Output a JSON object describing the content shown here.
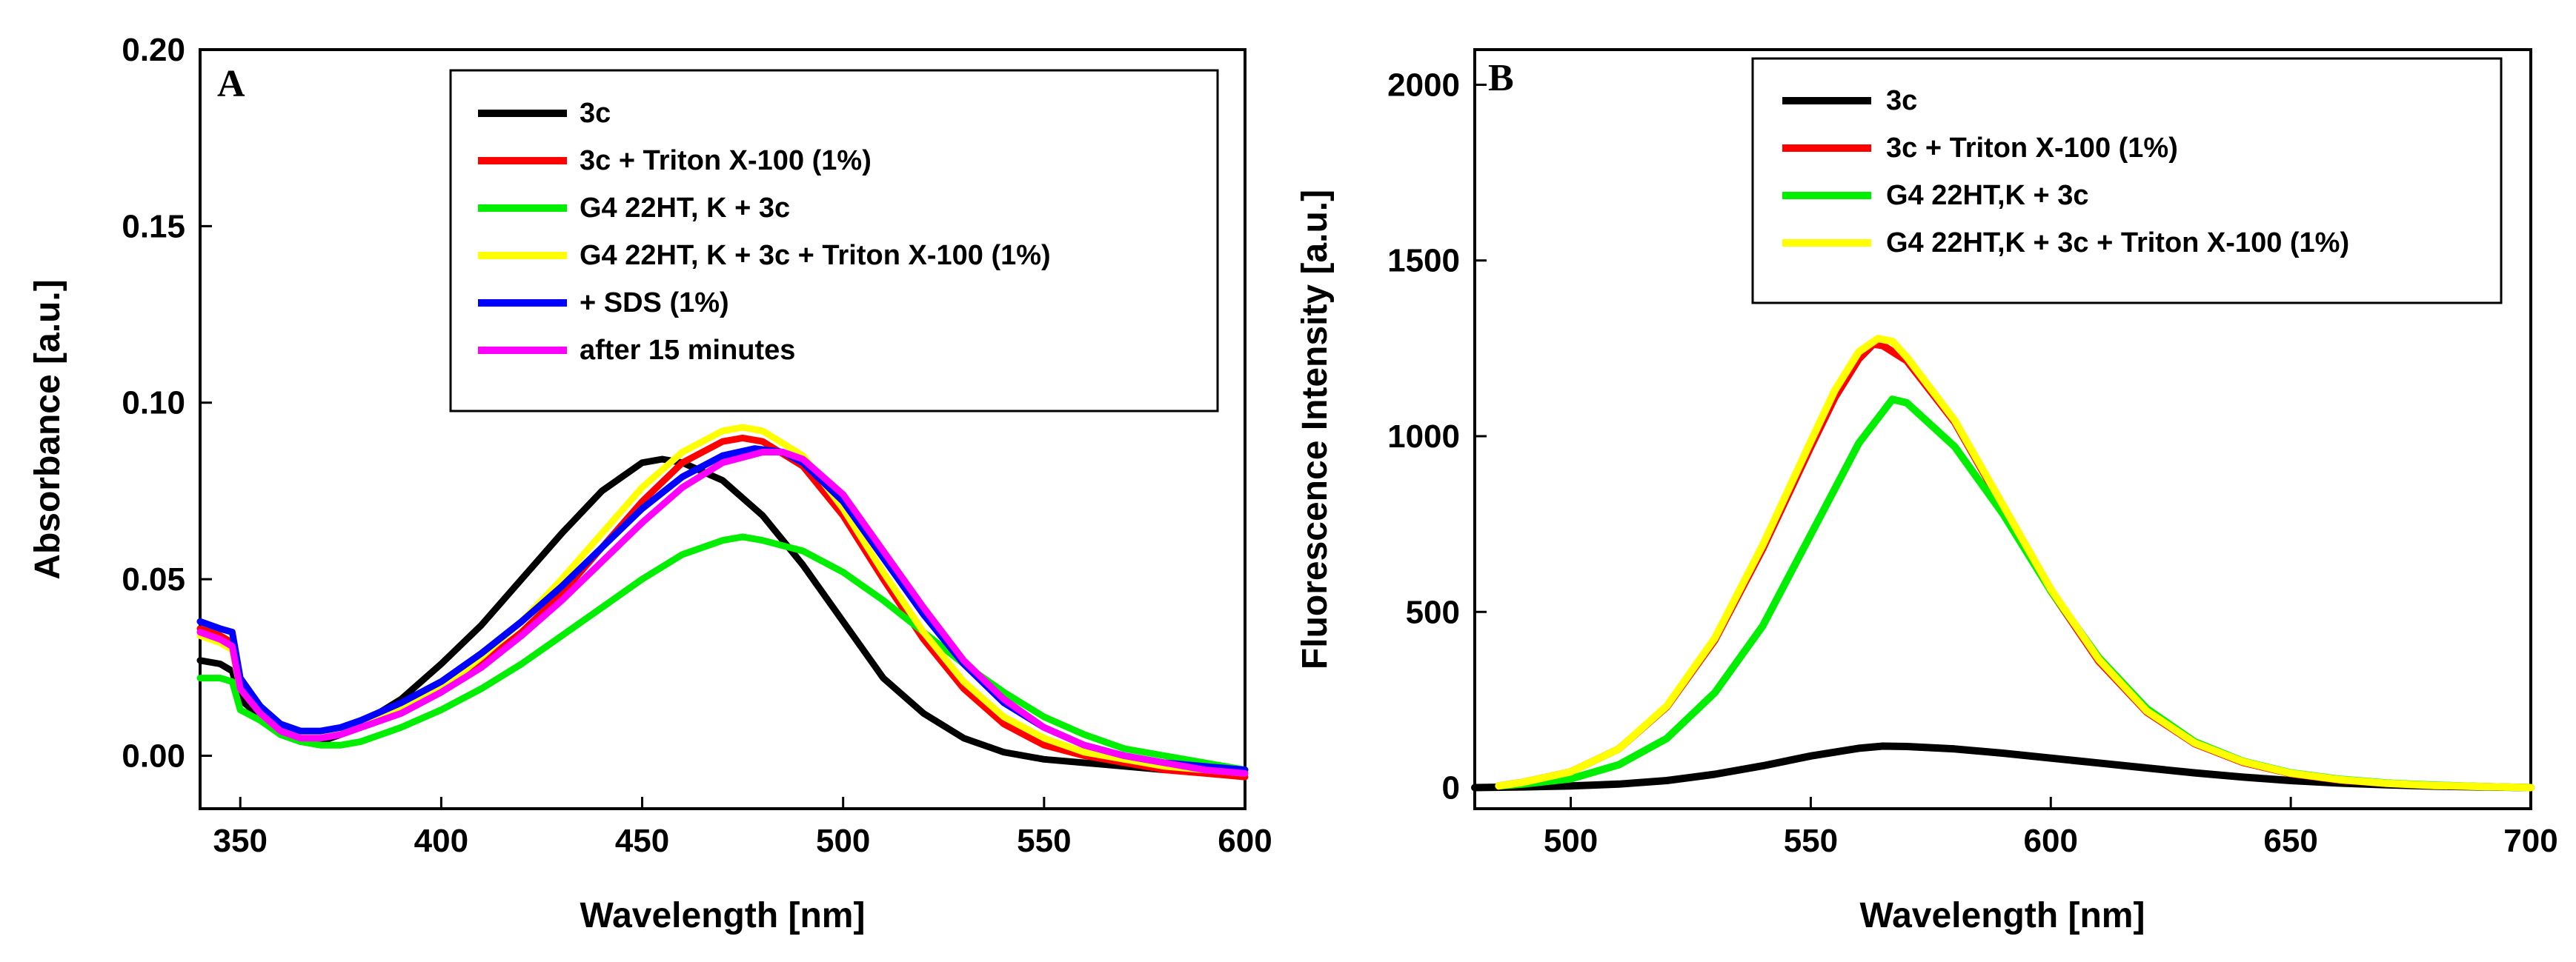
{
  "chart_data": [
    {
      "type": "line",
      "panel_label": "A",
      "xlabel": "Wavelength [nm]",
      "ylabel": "Absorbance [a.u.]",
      "xlim": [
        340,
        600
      ],
      "ylim": [
        -0.015,
        0.2
      ],
      "xticks": [
        350,
        400,
        450,
        500,
        550,
        600
      ],
      "xtick_labels": [
        "350",
        "400",
        "450",
        "500",
        "550",
        "600"
      ],
      "yticks": [
        0,
        0.05,
        0.1,
        0.15,
        0.2
      ],
      "ytick_labels": [
        "0.00",
        "0.05",
        "0.10",
        "0.15",
        "0.20"
      ],
      "legend_position": "top-right",
      "series": [
        {
          "name": "3c",
          "color": "#000000",
          "x": [
            340,
            345,
            348,
            350,
            355,
            360,
            365,
            370,
            375,
            380,
            390,
            400,
            410,
            420,
            430,
            440,
            450,
            455,
            460,
            470,
            480,
            490,
            500,
            510,
            520,
            530,
            540,
            550,
            560,
            570,
            580,
            590,
            600
          ],
          "y": [
            0.027,
            0.026,
            0.024,
            0.016,
            0.011,
            0.006,
            0.004,
            0.004,
            0.006,
            0.009,
            0.016,
            0.026,
            0.037,
            0.05,
            0.063,
            0.075,
            0.083,
            0.084,
            0.083,
            0.078,
            0.068,
            0.054,
            0.038,
            0.022,
            0.012,
            0.005,
            0.001,
            -0.001,
            -0.002,
            -0.003,
            -0.004,
            -0.004,
            -0.005
          ]
        },
        {
          "name": "3c + Triton X-100 (1%)",
          "color": "#ff0000",
          "x": [
            340,
            345,
            348,
            350,
            355,
            360,
            365,
            370,
            375,
            380,
            390,
            400,
            410,
            420,
            430,
            440,
            450,
            460,
            470,
            475,
            480,
            490,
            500,
            510,
            520,
            530,
            540,
            550,
            560,
            570,
            580,
            590,
            600
          ],
          "y": [
            0.036,
            0.034,
            0.032,
            0.02,
            0.013,
            0.008,
            0.006,
            0.006,
            0.006,
            0.008,
            0.012,
            0.018,
            0.026,
            0.035,
            0.046,
            0.059,
            0.072,
            0.083,
            0.089,
            0.09,
            0.089,
            0.082,
            0.068,
            0.05,
            0.033,
            0.019,
            0.009,
            0.003,
            0.0,
            -0.002,
            -0.004,
            -0.005,
            -0.006
          ]
        },
        {
          "name": "G4 22HT, K + 3c",
          "color": "#00ee00",
          "x": [
            340,
            345,
            348,
            350,
            355,
            360,
            365,
            370,
            375,
            380,
            390,
            400,
            410,
            420,
            430,
            440,
            450,
            460,
            470,
            475,
            480,
            490,
            500,
            510,
            520,
            530,
            540,
            550,
            560,
            570,
            580,
            590,
            600
          ],
          "y": [
            0.022,
            0.022,
            0.021,
            0.013,
            0.01,
            0.006,
            0.004,
            0.003,
            0.003,
            0.004,
            0.008,
            0.013,
            0.019,
            0.026,
            0.034,
            0.042,
            0.05,
            0.057,
            0.061,
            0.062,
            0.061,
            0.058,
            0.052,
            0.044,
            0.035,
            0.026,
            0.018,
            0.011,
            0.006,
            0.002,
            0.0,
            -0.002,
            -0.004
          ]
        },
        {
          "name": "G4 22HT, K + 3c + Triton X-100 (1%)",
          "color": "#ffff00",
          "x": [
            340,
            345,
            348,
            350,
            355,
            360,
            365,
            370,
            375,
            380,
            390,
            400,
            410,
            420,
            430,
            440,
            450,
            460,
            470,
            475,
            480,
            490,
            500,
            510,
            520,
            530,
            540,
            550,
            560,
            570,
            580,
            590,
            600
          ],
          "y": [
            0.034,
            0.032,
            0.03,
            0.019,
            0.012,
            0.007,
            0.006,
            0.006,
            0.007,
            0.009,
            0.013,
            0.019,
            0.028,
            0.038,
            0.05,
            0.063,
            0.076,
            0.086,
            0.092,
            0.093,
            0.092,
            0.085,
            0.07,
            0.052,
            0.035,
            0.021,
            0.011,
            0.005,
            0.001,
            -0.001,
            -0.003,
            -0.004,
            -0.005
          ]
        },
        {
          "name": "+ SDS (1%)",
          "color": "#0000ff",
          "x": [
            340,
            345,
            348,
            350,
            355,
            360,
            365,
            370,
            375,
            380,
            390,
            400,
            410,
            420,
            430,
            440,
            450,
            460,
            470,
            478,
            485,
            490,
            500,
            510,
            520,
            530,
            540,
            550,
            560,
            570,
            580,
            590,
            600
          ],
          "y": [
            0.038,
            0.036,
            0.035,
            0.022,
            0.014,
            0.009,
            0.007,
            0.007,
            0.008,
            0.01,
            0.015,
            0.021,
            0.029,
            0.038,
            0.048,
            0.059,
            0.07,
            0.079,
            0.085,
            0.087,
            0.086,
            0.083,
            0.072,
            0.056,
            0.04,
            0.026,
            0.015,
            0.008,
            0.003,
            0.0,
            -0.002,
            -0.003,
            -0.004
          ]
        },
        {
          "name": "after 15 minutes",
          "color": "#ff00ff",
          "x": [
            340,
            345,
            348,
            350,
            355,
            360,
            365,
            370,
            375,
            380,
            390,
            400,
            410,
            420,
            430,
            440,
            450,
            460,
            470,
            480,
            485,
            490,
            500,
            510,
            520,
            530,
            540,
            550,
            560,
            570,
            580,
            590,
            600
          ],
          "y": [
            0.035,
            0.033,
            0.031,
            0.019,
            0.012,
            0.007,
            0.005,
            0.005,
            0.006,
            0.008,
            0.012,
            0.018,
            0.025,
            0.034,
            0.044,
            0.055,
            0.066,
            0.076,
            0.083,
            0.086,
            0.086,
            0.084,
            0.074,
            0.058,
            0.042,
            0.027,
            0.016,
            0.008,
            0.003,
            0.0,
            -0.002,
            -0.004,
            -0.005
          ]
        }
      ],
      "legend": [
        "3c",
        "3c + Triton X-100 (1%)",
        "G4 22HT, K + 3c",
        "G4 22HT, K + 3c + Triton X-100 (1%)",
        "+ SDS (1%)",
        "after 15 minutes"
      ]
    },
    {
      "type": "line",
      "panel_label": "B",
      "xlabel": "Wavelength [nm]",
      "ylabel": "Fluorescence Intensity [a.u.]",
      "xlim": [
        480,
        700
      ],
      "ylim": [
        -60,
        2100
      ],
      "xticks": [
        500,
        550,
        600,
        650,
        700
      ],
      "xtick_labels": [
        "500",
        "550",
        "600",
        "650",
        "700"
      ],
      "yticks": [
        0,
        500,
        1000,
        1500,
        2000
      ],
      "ytick_labels": [
        "0",
        "500",
        "1000",
        "1500",
        "2000"
      ],
      "legend_position": "top-right",
      "series": [
        {
          "name": "3c",
          "color": "#000000",
          "x": [
            480,
            490,
            500,
            510,
            520,
            530,
            540,
            550,
            560,
            565,
            570,
            580,
            590,
            600,
            610,
            620,
            630,
            640,
            650,
            660,
            670,
            680,
            690,
            700
          ],
          "y": [
            0,
            2,
            5,
            10,
            20,
            38,
            62,
            90,
            112,
            118,
            117,
            110,
            98,
            84,
            70,
            56,
            42,
            30,
            20,
            13,
            8,
            4,
            2,
            0
          ]
        },
        {
          "name": "3c + Triton X-100 (1%)",
          "color": "#ff0000",
          "x": [
            485,
            490,
            500,
            510,
            520,
            530,
            540,
            550,
            555,
            560,
            563,
            565,
            570,
            580,
            590,
            600,
            610,
            620,
            630,
            640,
            650,
            660,
            670,
            680,
            690,
            700
          ],
          "y": [
            5,
            15,
            45,
            110,
            230,
            420,
            680,
            970,
            1110,
            1220,
            1262,
            1258,
            1215,
            1040,
            800,
            560,
            360,
            215,
            125,
            72,
            40,
            22,
            12,
            6,
            3,
            0
          ]
        },
        {
          "name": "G4 22HT,K + 3c",
          "color": "#00ee00",
          "x": [
            485,
            490,
            500,
            510,
            520,
            530,
            540,
            550,
            560,
            567,
            570,
            580,
            590,
            600,
            610,
            620,
            630,
            640,
            650,
            660,
            670,
            680,
            690,
            700
          ],
          "y": [
            5,
            10,
            25,
            65,
            140,
            270,
            460,
            720,
            980,
            1105,
            1095,
            970,
            780,
            560,
            370,
            225,
            130,
            75,
            42,
            24,
            13,
            7,
            3,
            0
          ]
        },
        {
          "name": "G4 22HT,K + 3c + Triton X-100 (1%)",
          "color": "#ffff00",
          "x": [
            485,
            490,
            500,
            510,
            520,
            530,
            540,
            550,
            555,
            560,
            564,
            567,
            570,
            580,
            590,
            600,
            610,
            620,
            630,
            640,
            650,
            660,
            670,
            680,
            690,
            700
          ],
          "y": [
            5,
            15,
            45,
            110,
            232,
            425,
            690,
            985,
            1130,
            1240,
            1278,
            1270,
            1225,
            1045,
            805,
            565,
            365,
            218,
            127,
            74,
            41,
            23,
            12,
            6,
            3,
            0
          ]
        }
      ],
      "legend": [
        "3c",
        "3c + Triton X-100 (1%)",
        "G4 22HT,K + 3c",
        "G4 22HT,K + 3c + Triton X-100 (1%)"
      ]
    }
  ]
}
